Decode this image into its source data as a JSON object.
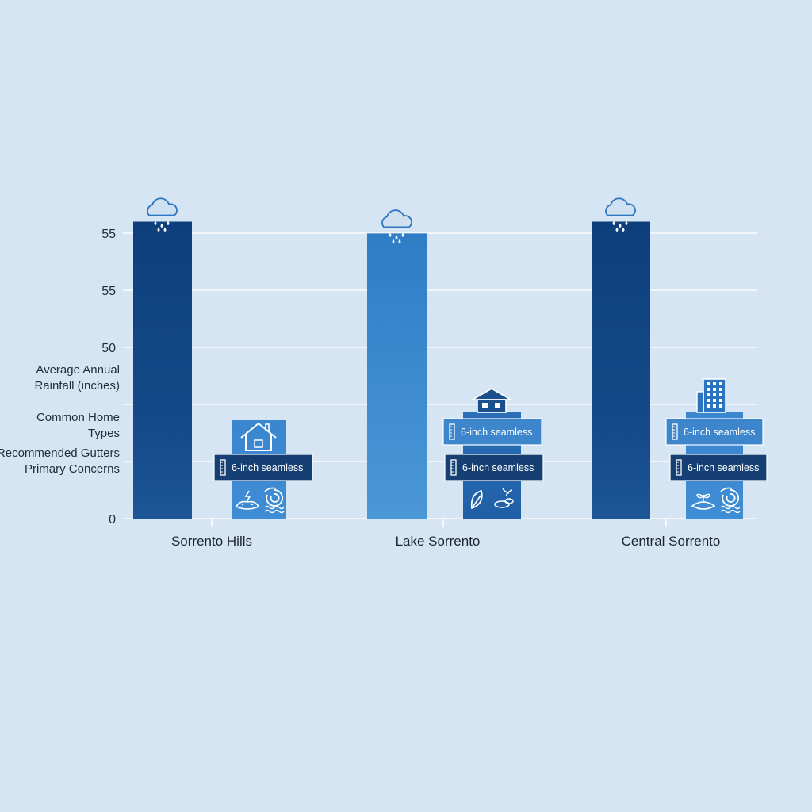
{
  "chart_data": {
    "type": "bar",
    "y_tick_labels": [
      "55",
      "55",
      "50",
      "",
      "",
      "0"
    ],
    "ylabel_rows": [
      "Average Annual Rainfall (inches)",
      "Common Home Types",
      "Recommended Gutters",
      "Primary Concerns"
    ],
    "categories": [
      "Sorrento Hills",
      "Lake Sorrento",
      "Central Sorrento"
    ],
    "rainfall_inches": [
      55.5,
      53.3,
      55.5
    ],
    "home_types": [
      "single-family-house-icon",
      "single-family-house-icon",
      "apartment-building-icon"
    ],
    "recommended_gutters": [
      [
        "6-inch seamless"
      ],
      [
        "6-inch seamless",
        "6-inch seamless"
      ],
      [
        "6-inch seamless",
        "6-inch seamless"
      ]
    ],
    "primary_concerns": [
      [
        "storm-damage-icon",
        "hurricane-icon"
      ],
      [
        "leaf-debris-icon",
        "root-debris-icon"
      ],
      [
        "erosion-icon",
        "hurricane-icon"
      ]
    ],
    "grid": true,
    "colors": {
      "background": "#d6e5f3",
      "rain_bar_dark": "#154a8a",
      "rain_bar_light": "#3f8fd2",
      "info_panel": "#3a86cf",
      "label_box_dark": "#163f73",
      "label_box_mid": "#3d86cc",
      "gridline": "#ffffff",
      "icon_stroke": "#ffffff"
    }
  }
}
